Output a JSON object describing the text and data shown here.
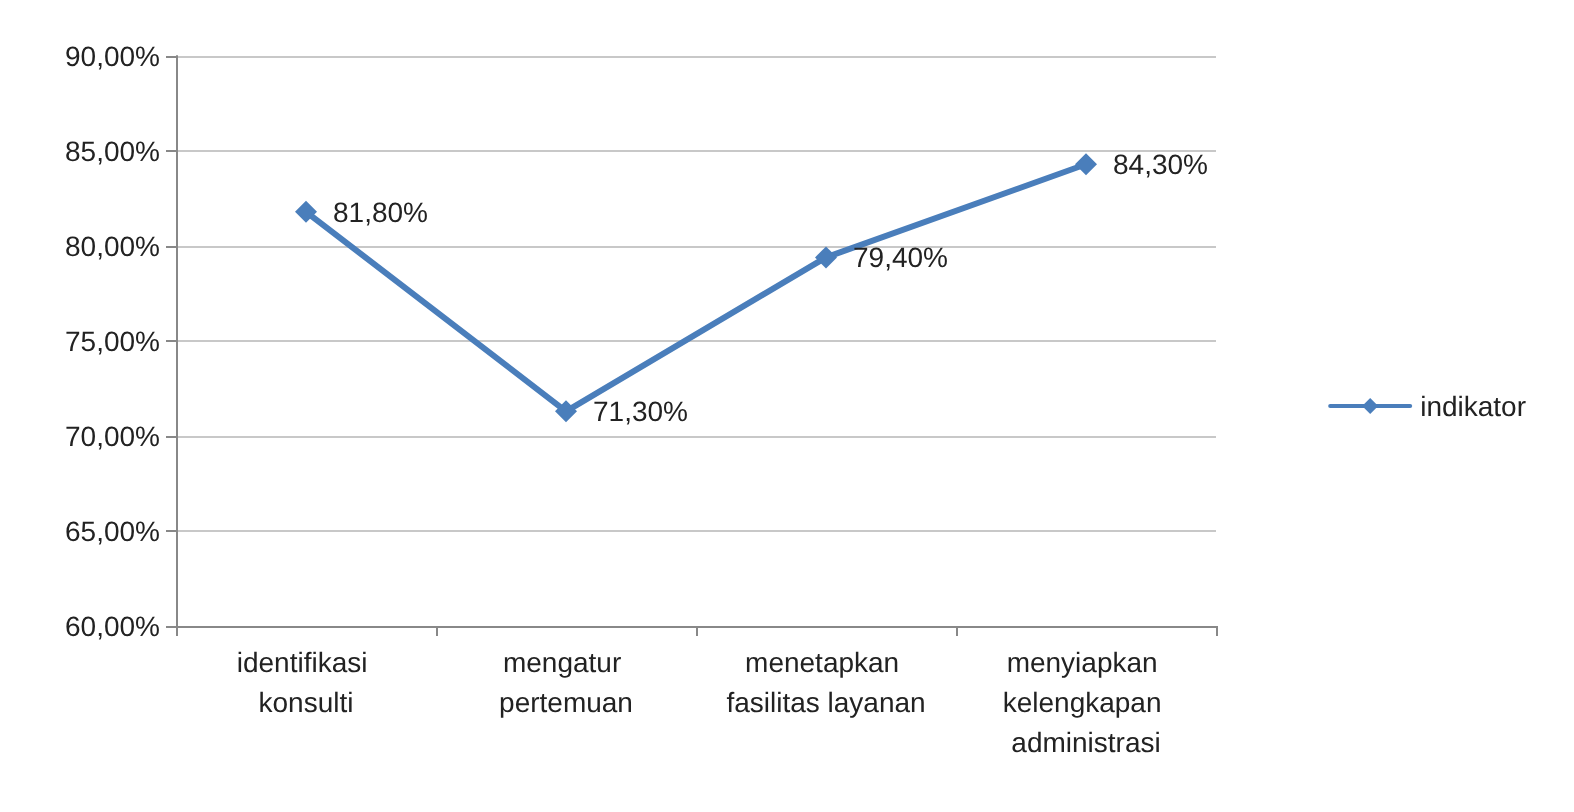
{
  "chart_data": {
    "type": "line",
    "categories": [
      "identifikasi konsulti",
      "mengatur pertemuan",
      "menetapkan fasilitas layanan",
      "menyiapkan kelengkapan administrasi"
    ],
    "series": [
      {
        "name": "indikator",
        "color": "#4a7ebb",
        "values": [
          81.8,
          71.3,
          79.4,
          84.3
        ],
        "value_labels": [
          "81,80%",
          "71,30%",
          "79,40%",
          "84,30%"
        ]
      }
    ],
    "ylim": [
      60,
      90
    ],
    "yticks": [
      {
        "value": 60,
        "label": "60,00%"
      },
      {
        "value": 65,
        "label": "65,00%"
      },
      {
        "value": 70,
        "label": "70,00%"
      },
      {
        "value": 75,
        "label": "75,00%"
      },
      {
        "value": 80,
        "label": "80,00%"
      },
      {
        "value": 85,
        "label": "85,00%"
      },
      {
        "value": 90,
        "label": "90,00%"
      }
    ],
    "grid": "y",
    "legend": "right",
    "marker": "diamond",
    "line_style": "solid"
  }
}
